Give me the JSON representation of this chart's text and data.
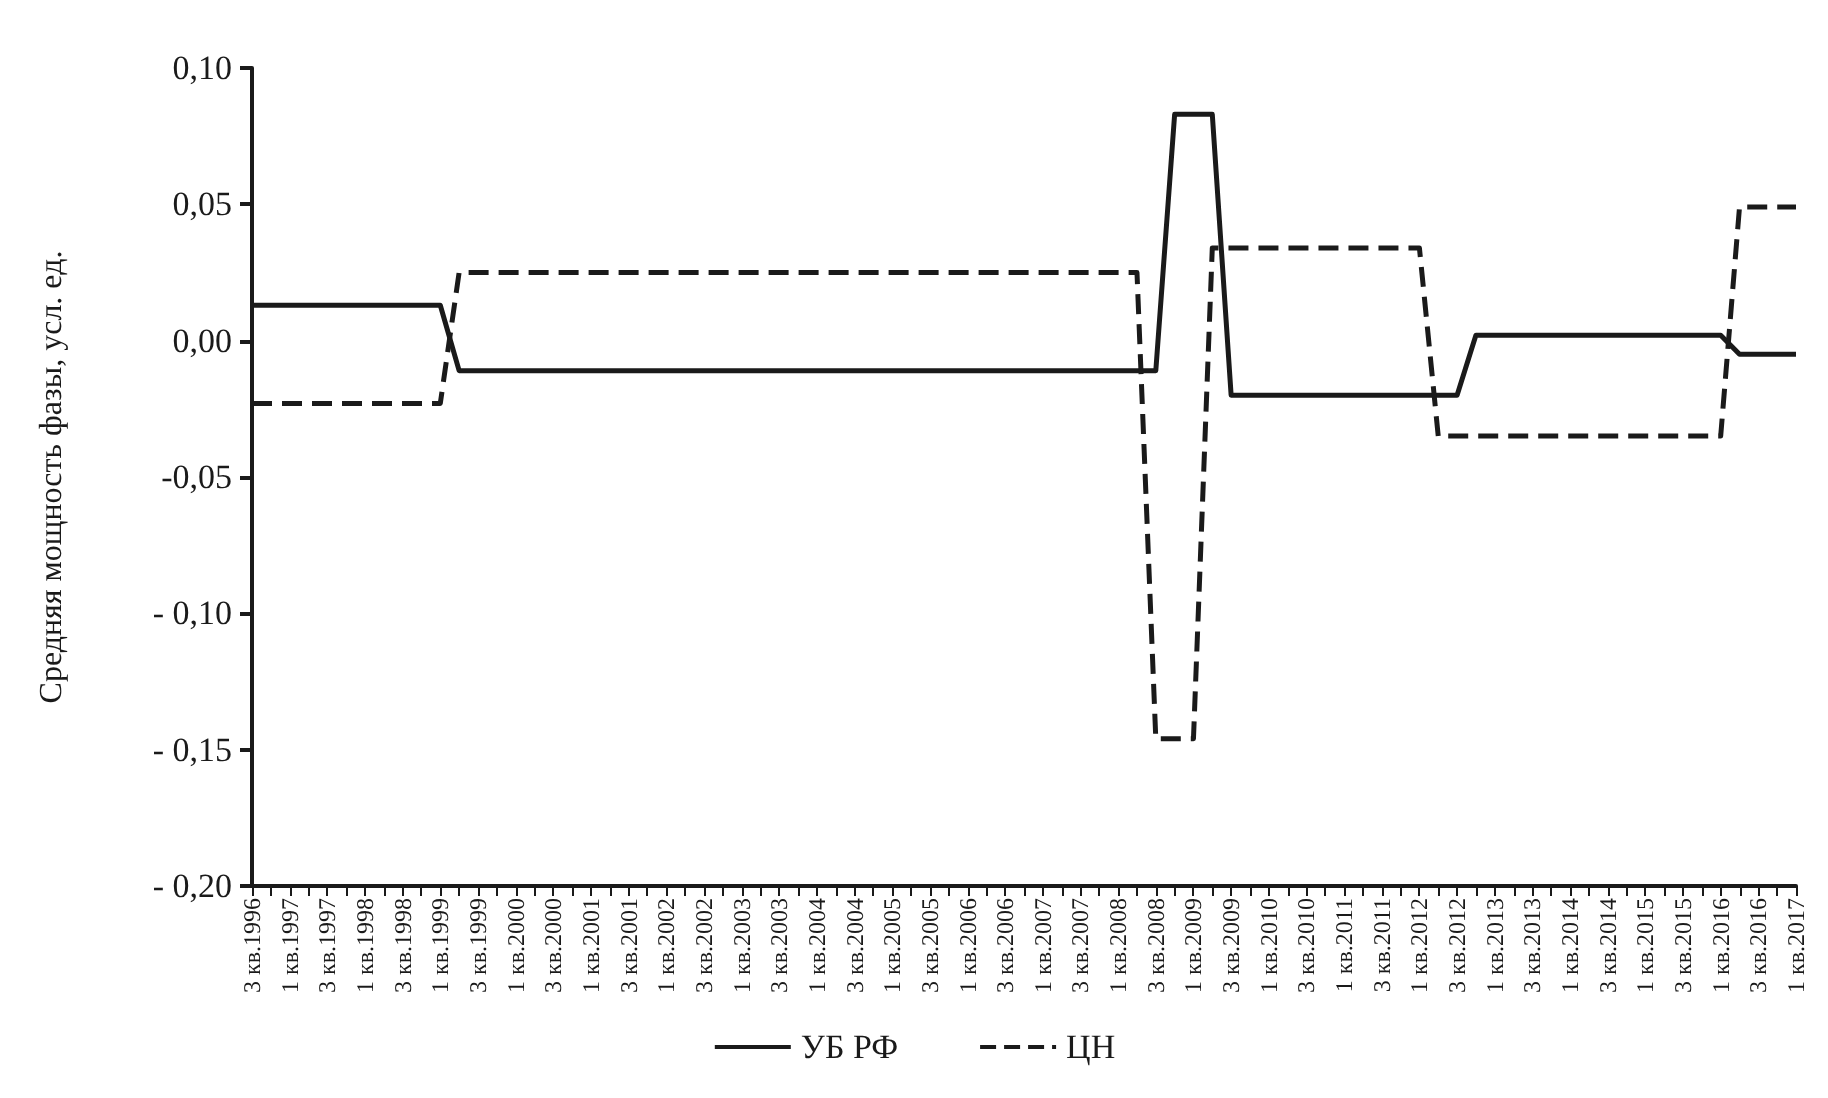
{
  "chart_data": {
    "type": "line",
    "ylabel": "Средняя мощность фазы, усл. ед.",
    "categories": [
      "3 кв.1996",
      null,
      "1 кв.1997",
      null,
      "3 кв.1997",
      null,
      "1 кв.1998",
      null,
      "3 кв.1998",
      null,
      "1 кв.1999",
      null,
      "3 кв.1999",
      null,
      "1 кв.2000",
      null,
      "3 кв.2000",
      null,
      "1 кв.2001",
      null,
      "3 кв.2001",
      null,
      "1 кв.2002",
      null,
      "3 кв.2002",
      null,
      "1 кв.2003",
      null,
      "3 кв.2003",
      null,
      "1 кв.2004",
      null,
      "3 кв.2004",
      null,
      "1 кв.2005",
      null,
      "3 кв.2005",
      null,
      "1 кв.2006",
      null,
      "3 кв.2006",
      null,
      "1 кв.2007",
      null,
      "3 кв.2007",
      null,
      "1 кв.2008",
      null,
      "3 кв.2008",
      null,
      "1 кв.2009",
      null,
      "3 кв.2009",
      null,
      "1 кв.2010",
      null,
      "3 кв.2010",
      null,
      "1 кв.2011",
      null,
      "3 кв.2011",
      null,
      "1 кв.2012",
      null,
      "3 кв.2012",
      null,
      "1 кв.2013",
      null,
      "3 кв.2013",
      null,
      "1 кв.2014",
      null,
      "3 кв.2014",
      null,
      "1 кв.2015",
      null,
      "3 кв.2015",
      null,
      "1 кв.2016",
      null,
      "3 кв.2016",
      null,
      "1 кв.2017"
    ],
    "series": [
      {
        "name": "УБ РФ",
        "color": "#1a1a1a",
        "line_style": "solid",
        "values": [
          0.013,
          0.013,
          0.013,
          0.013,
          0.013,
          0.013,
          0.013,
          0.013,
          0.013,
          0.013,
          0.013,
          -0.011,
          -0.011,
          -0.011,
          -0.011,
          -0.011,
          -0.011,
          -0.011,
          -0.011,
          -0.011,
          -0.011,
          -0.011,
          -0.011,
          -0.011,
          -0.011,
          -0.011,
          -0.011,
          -0.011,
          -0.011,
          -0.011,
          -0.011,
          -0.011,
          -0.011,
          -0.011,
          -0.011,
          -0.011,
          -0.011,
          -0.011,
          -0.011,
          -0.011,
          -0.011,
          -0.011,
          -0.011,
          -0.011,
          -0.011,
          -0.011,
          -0.011,
          -0.011,
          -0.011,
          0.083,
          0.083,
          0.083,
          -0.02,
          -0.02,
          -0.02,
          -0.02,
          -0.02,
          -0.02,
          -0.02,
          -0.02,
          -0.02,
          -0.02,
          -0.02,
          -0.02,
          -0.02,
          0.002,
          0.002,
          0.002,
          0.002,
          0.002,
          0.002,
          0.002,
          0.002,
          0.002,
          0.002,
          0.002,
          0.002,
          0.002,
          0.002,
          -0.005,
          -0.005,
          -0.005,
          -0.005
        ]
      },
      {
        "name": "ЦН",
        "color": "#1a1a1a",
        "line_style": "dashed",
        "values": [
          -0.023,
          -0.023,
          -0.023,
          -0.023,
          -0.023,
          -0.023,
          -0.023,
          -0.023,
          -0.023,
          -0.023,
          -0.023,
          0.025,
          0.025,
          0.025,
          0.025,
          0.025,
          0.025,
          0.025,
          0.025,
          0.025,
          0.025,
          0.025,
          0.025,
          0.025,
          0.025,
          0.025,
          0.025,
          0.025,
          0.025,
          0.025,
          0.025,
          0.025,
          0.025,
          0.025,
          0.025,
          0.025,
          0.025,
          0.025,
          0.025,
          0.025,
          0.025,
          0.025,
          0.025,
          0.025,
          0.025,
          0.025,
          0.025,
          0.025,
          -0.146,
          -0.146,
          -0.146,
          0.034,
          0.034,
          0.034,
          0.034,
          0.034,
          0.034,
          0.034,
          0.034,
          0.034,
          0.034,
          0.034,
          0.034,
          -0.035,
          -0.035,
          -0.035,
          -0.035,
          -0.035,
          -0.035,
          -0.035,
          -0.035,
          -0.035,
          -0.035,
          -0.035,
          -0.035,
          -0.035,
          -0.035,
          -0.035,
          -0.035,
          0.049,
          0.049,
          0.049,
          0.049
        ]
      }
    ],
    "ylim": [
      -0.2,
      0.1
    ],
    "yticks": [
      {
        "value": 0.1,
        "label": "0,10"
      },
      {
        "value": 0.05,
        "label": "0,05"
      },
      {
        "value": 0,
        "label": "0,00"
      },
      {
        "value": -0.05,
        "label": "-0,05"
      },
      {
        "value": -0.1,
        "label": "- 0,10"
      },
      {
        "value": -0.15,
        "label": "- 0,15"
      },
      {
        "value": -0.2,
        "label": "- 0,20"
      }
    ],
    "grid": false,
    "legend": "bottom",
    "marker": "none"
  }
}
